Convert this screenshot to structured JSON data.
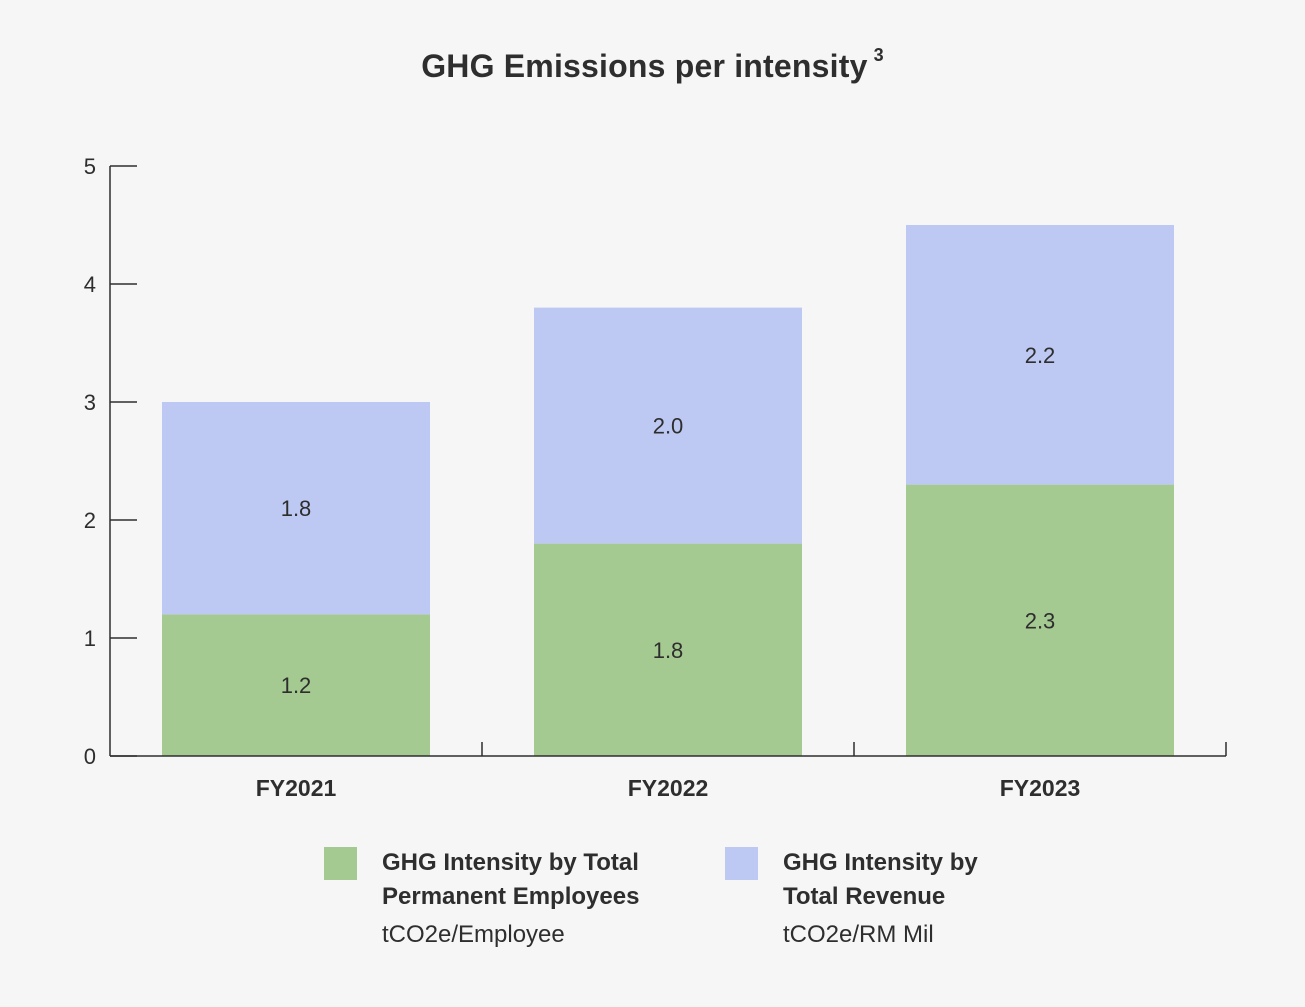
{
  "chart_data": {
    "type": "bar",
    "stacked": true,
    "title": "GHG Emissions per intensity",
    "title_superscript": "3",
    "xlabel": "",
    "ylabel": "",
    "categories": [
      "FY2021",
      "FY2022",
      "FY2023"
    ],
    "ylim": [
      0,
      5
    ],
    "yticks": [
      "0",
      "1",
      "2",
      "3",
      "4",
      "5"
    ],
    "grid": false,
    "legend_position": "bottom",
    "series": [
      {
        "name": "GHG Intensity by Total\nPermanent Employees",
        "unit": "tCO2e/Employee",
        "color": "#a4ca91",
        "values": [
          1.2,
          1.8,
          2.3
        ],
        "labels": [
          "1.2",
          "1.8",
          "2.3"
        ]
      },
      {
        "name": "GHG Intensity by\nTotal Revenue",
        "unit": "tCO2e/RM Mil",
        "color": "#bdc9f2",
        "values": [
          1.8,
          2.0,
          2.2
        ],
        "labels": [
          "1.8",
          "2.0",
          "2.2"
        ]
      }
    ]
  }
}
